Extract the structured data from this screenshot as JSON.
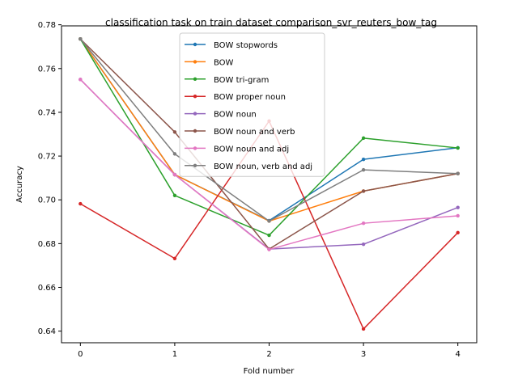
{
  "chart_data": {
    "type": "line",
    "title": "classification task on train dataset comparison_svr_reuters_bow_tag",
    "xlabel": "Fold number",
    "ylabel": "Accuracy",
    "x": [
      0,
      1,
      2,
      3,
      4
    ],
    "x_ticks": [
      "0",
      "1",
      "2",
      "3",
      "4"
    ],
    "y_ticks": [
      "0.64",
      "0.66",
      "0.68",
      "0.70",
      "0.72",
      "0.74",
      "0.76",
      "0.78"
    ],
    "xlim": [
      -0.2,
      4.2
    ],
    "ylim": [
      0.6347,
      0.7795
    ],
    "grid": false,
    "legend_position": "top-center",
    "series": [
      {
        "name": "BOW stopwords",
        "color": "#1f77b4",
        "values": [
          0.7735,
          0.7115,
          0.6905,
          0.7185,
          0.7238
        ]
      },
      {
        "name": "BOW",
        "color": "#ff7f0e",
        "values": [
          0.7735,
          0.7115,
          0.6903,
          0.704,
          0.712
        ]
      },
      {
        "name": "BOW tri-gram",
        "color": "#2ca02c",
        "values": [
          0.7735,
          0.702,
          0.6838,
          0.7282,
          0.7237
        ]
      },
      {
        "name": "BOW proper noun",
        "color": "#d62728",
        "values": [
          0.6982,
          0.6732,
          0.736,
          0.641,
          0.685
        ]
      },
      {
        "name": "BOW noun",
        "color": "#9467bd",
        "values": [
          0.755,
          0.7115,
          0.6775,
          0.6797,
          0.6965
        ]
      },
      {
        "name": "BOW noun and verb",
        "color": "#8c564b",
        "values": [
          0.7735,
          0.731,
          0.6775,
          0.704,
          0.712
        ]
      },
      {
        "name": "BOW noun and adj",
        "color": "#e377c2",
        "values": [
          0.755,
          0.7115,
          0.6773,
          0.6893,
          0.6927
        ]
      },
      {
        "name": "BOW noun, verb and adj",
        "color": "#7f7f7f",
        "values": [
          0.7735,
          0.721,
          0.6903,
          0.7137,
          0.712
        ]
      }
    ]
  }
}
